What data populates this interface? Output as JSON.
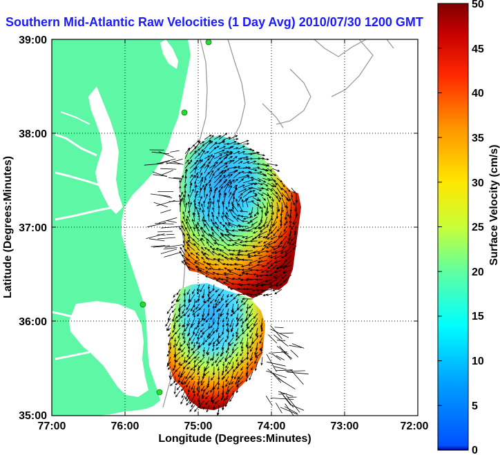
{
  "title": "Southern Mid-Atlantic Raw Velocities (1 Day Avg) 2010/07/30 1200 GMT",
  "map": {
    "lon_range": [
      -77,
      -72
    ],
    "lat_range": [
      35,
      39
    ],
    "xlabel": "Longitude (Degrees:Minutes)",
    "ylabel": "Latitude (Degrees:Minutes)",
    "x_ticks": [
      {
        "value": -77,
        "label": "77:00"
      },
      {
        "value": -76,
        "label": "76:00"
      },
      {
        "value": -75,
        "label": "75:00"
      },
      {
        "value": -74,
        "label": "74:00"
      },
      {
        "value": -73,
        "label": "73:00"
      },
      {
        "value": -72,
        "label": "72:00"
      }
    ],
    "y_ticks": [
      {
        "value": 39,
        "label": "39:00"
      },
      {
        "value": 38,
        "label": "38:00"
      },
      {
        "value": 37,
        "label": "37:00"
      },
      {
        "value": 36,
        "label": "36:00"
      },
      {
        "value": 35,
        "label": "35:00"
      }
    ],
    "grid": "dotted",
    "land_color": "#5ef7a6",
    "bathymetry_color": "#9a9a9a"
  },
  "colorbar": {
    "label": "Surface Velocity (cm/s)",
    "min": 0,
    "max": 50,
    "ticks": [
      "0",
      "5",
      "10",
      "15",
      "20",
      "25",
      "30",
      "35",
      "40",
      "45",
      "50"
    ],
    "colormap": "jet"
  },
  "stations": [
    "station-north",
    "station-delmarva",
    "station-hatteras-north",
    "station-hatteras-south"
  ]
}
